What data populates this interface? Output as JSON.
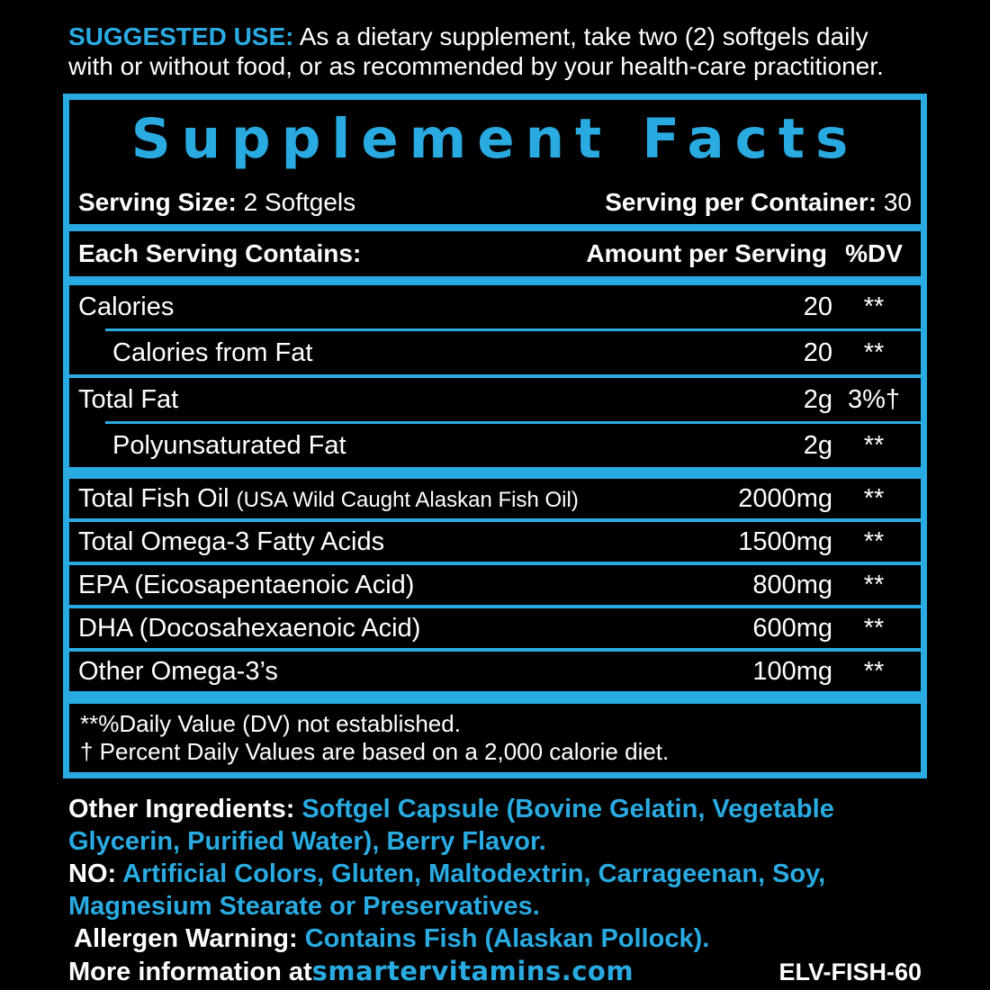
{
  "colors": {
    "accent_blue": "#29ABE2",
    "text_white": "#ffffff",
    "background_black": "#000000"
  },
  "suggested_use": {
    "label": "SUGGESTED USE:",
    "line1_rest": "As a dietary supplement, take two (2) softgels daily",
    "line2": "with or without food, or as recommended by your health-care practitioner."
  },
  "panel": {
    "title": "Supplement Facts",
    "serving_size_label": "Serving Size:",
    "serving_size_value": "2 Softgels",
    "servings_per_container_label": "Serving per Container:",
    "servings_per_container_value": "30",
    "header": {
      "left": "Each Serving Contains:",
      "amount": "Amount per Serving",
      "dv": "%DV"
    },
    "group1": [
      {
        "name": "Calories",
        "amount": "20",
        "dv": "**"
      },
      {
        "name": "Calories from Fat",
        "amount": "20",
        "dv": "**"
      },
      {
        "name": "Total Fat",
        "amount": "2g",
        "dv": "3%†"
      },
      {
        "name": "Polyunsaturated Fat",
        "amount": "2g",
        "dv": "**"
      }
    ],
    "group2": [
      {
        "name": "Total Fish Oil",
        "name_note": "(USA Wild Caught Alaskan Fish Oil)",
        "amount": "2000mg",
        "dv": "**"
      },
      {
        "name": "Total Omega-3 Fatty Acids",
        "amount": "1500mg",
        "dv": "**"
      },
      {
        "name": "EPA (Eicosapentaenoic Acid)",
        "amount": "800mg",
        "dv": "**"
      },
      {
        "name": "DHA (Docosahexaenoic Acid)",
        "amount": "600mg",
        "dv": "**"
      },
      {
        "name": "Other Omega-3’s",
        "amount": "100mg",
        "dv": "**"
      }
    ],
    "footnote_line1": "**%Daily Value (DV) not established.",
    "footnote_line2": "† Percent Daily Values are based on a 2,000 calorie diet."
  },
  "other_info": {
    "other_ingredients_label": "Other Ingredients: ",
    "other_ingredients_blue_line1": "Softgel Capsule (Bovine Gelatin, Vegetable",
    "other_ingredients_blue_line2": "Glycerin, Purified Water), Berry Flavor.",
    "no_label": "NO: ",
    "no_blue_line1": "Artificial Colors, Gluten, Maltodextrin, Carrageenan, Soy,",
    "no_blue_line2": "Magnesium Stearate or Preservatives.",
    "allergen_label": "Allergen Warning: ",
    "allergen_value": "Contains Fish (Alaskan Pollock).",
    "more_info_label": "More information at ",
    "website": "smartervitamins.com",
    "sku": "ELV-FISH-60"
  }
}
